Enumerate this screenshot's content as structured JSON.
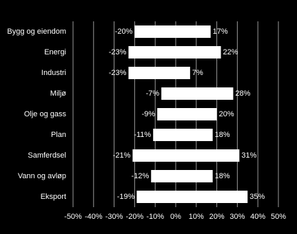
{
  "chart_data": {
    "type": "diverging-bar",
    "categories": [
      "Bygg og eiendom",
      "Energi",
      "Industri",
      "Miljø",
      "Olje og gass",
      "Plan",
      "Samferdsel",
      "Vann og avløp",
      "Eksport"
    ],
    "series": [
      {
        "color": "#ffffff",
        "values": [
          -20,
          -23,
          -23,
          -7,
          -9,
          -11,
          -21,
          -12,
          -19
        ],
        "value_labels": [
          "-20%",
          "-23%",
          "-23%",
          "-7%",
          "-9%",
          "-11%",
          "-21%",
          "-12%",
          "-19%"
        ]
      },
      {
        "color": "#ffffff",
        "values": [
          17,
          22,
          7,
          28,
          20,
          18,
          31,
          18,
          35
        ],
        "value_labels": [
          "17%",
          "22%",
          "7%",
          "28%",
          "20%",
          "18%",
          "31%",
          "18%",
          "35%"
        ]
      }
    ],
    "xlim": [
      -50,
      50
    ],
    "xticks": [
      {
        "value": -50,
        "label": "-50%"
      },
      {
        "value": -40,
        "label": "-40%"
      },
      {
        "value": -30,
        "label": "-30%"
      },
      {
        "value": -20,
        "label": "-20%"
      },
      {
        "value": -10,
        "label": "-10%"
      },
      {
        "value": 0,
        "label": "0%"
      },
      {
        "value": 10,
        "label": "10%"
      },
      {
        "value": 20,
        "label": "20%"
      },
      {
        "value": 30,
        "label": "30%"
      },
      {
        "value": 40,
        "label": "40%"
      },
      {
        "value": 50,
        "label": "50%"
      }
    ],
    "grid": true
  }
}
